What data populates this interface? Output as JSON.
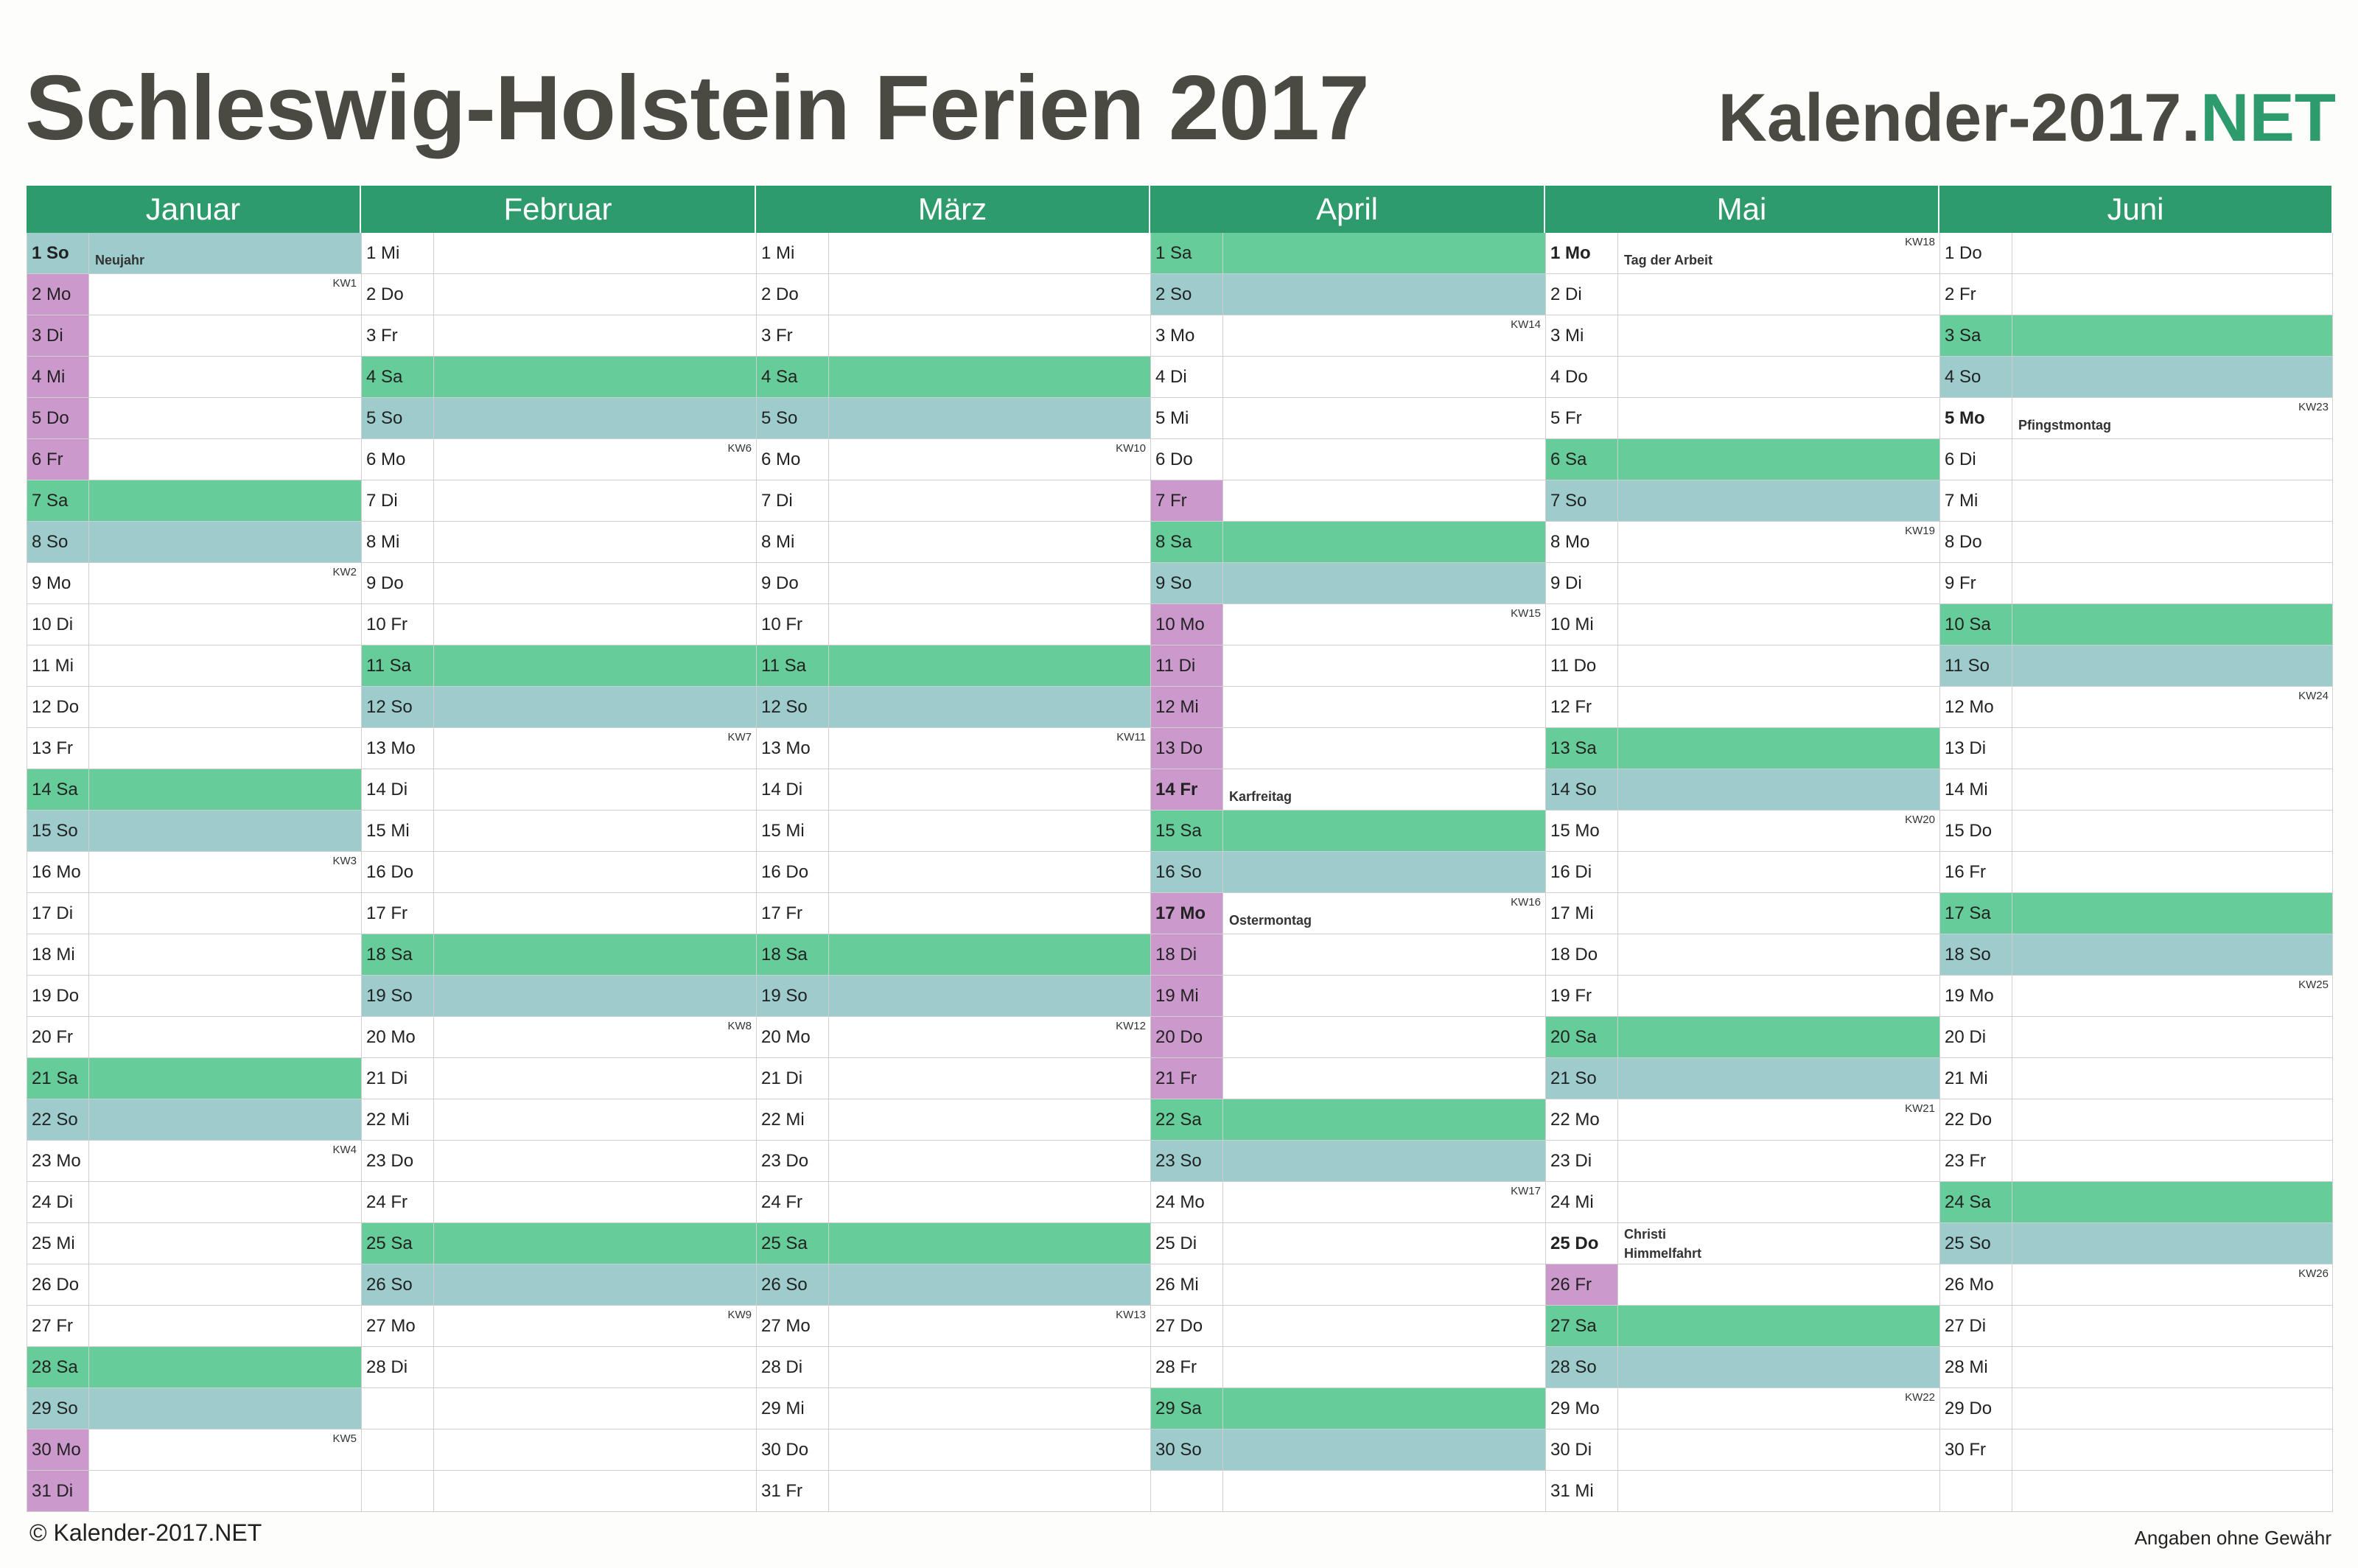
{
  "title": "Schleswig-Holstein Ferien 2017",
  "brand": {
    "main": "Kalender-2017.",
    "accent": "NET"
  },
  "colors": {
    "header": "#2e9b6c",
    "saturday": "#66cc99",
    "sunday": "#9ecccc",
    "ferien": "#cc99cc",
    "workday": "#ffffff"
  },
  "footer": {
    "copyright": "© Kalender-2017.NET",
    "disclaimer": "Angaben ohne Gewähr"
  },
  "months": [
    {
      "name": "Januar",
      "days": [
        {
          "label": "1 So",
          "type": "so",
          "holiday": "Neujahr",
          "bold": true
        },
        {
          "label": "2 Mo",
          "type": "wk",
          "kw": "KW1",
          "ferien": true
        },
        {
          "label": "3 Di",
          "type": "wk",
          "ferien": true
        },
        {
          "label": "4 Mi",
          "type": "wk",
          "ferien": true
        },
        {
          "label": "5 Do",
          "type": "wk",
          "ferien": true
        },
        {
          "label": "6 Fr",
          "type": "wk",
          "ferien": true
        },
        {
          "label": "7 Sa",
          "type": "sa"
        },
        {
          "label": "8 So",
          "type": "so"
        },
        {
          "label": "9 Mo",
          "type": "wk",
          "kw": "KW2"
        },
        {
          "label": "10 Di",
          "type": "wk"
        },
        {
          "label": "11 Mi",
          "type": "wk"
        },
        {
          "label": "12 Do",
          "type": "wk"
        },
        {
          "label": "13 Fr",
          "type": "wk"
        },
        {
          "label": "14 Sa",
          "type": "sa"
        },
        {
          "label": "15 So",
          "type": "so"
        },
        {
          "label": "16 Mo",
          "type": "wk",
          "kw": "KW3"
        },
        {
          "label": "17 Di",
          "type": "wk"
        },
        {
          "label": "18 Mi",
          "type": "wk"
        },
        {
          "label": "19 Do",
          "type": "wk"
        },
        {
          "label": "20 Fr",
          "type": "wk"
        },
        {
          "label": "21 Sa",
          "type": "sa"
        },
        {
          "label": "22 So",
          "type": "so"
        },
        {
          "label": "23 Mo",
          "type": "wk",
          "kw": "KW4"
        },
        {
          "label": "24 Di",
          "type": "wk"
        },
        {
          "label": "25 Mi",
          "type": "wk"
        },
        {
          "label": "26 Do",
          "type": "wk"
        },
        {
          "label": "27 Fr",
          "type": "wk"
        },
        {
          "label": "28 Sa",
          "type": "sa"
        },
        {
          "label": "29 So",
          "type": "so"
        },
        {
          "label": "30 Mo",
          "type": "wk",
          "kw": "KW5",
          "ferien": true
        },
        {
          "label": "31 Di",
          "type": "wk",
          "ferien": true
        }
      ]
    },
    {
      "name": "Februar",
      "days": [
        {
          "label": "1 Mi",
          "type": "wk"
        },
        {
          "label": "2 Do",
          "type": "wk"
        },
        {
          "label": "3 Fr",
          "type": "wk"
        },
        {
          "label": "4 Sa",
          "type": "sa"
        },
        {
          "label": "5 So",
          "type": "so"
        },
        {
          "label": "6 Mo",
          "type": "wk",
          "kw": "KW6"
        },
        {
          "label": "7 Di",
          "type": "wk"
        },
        {
          "label": "8 Mi",
          "type": "wk"
        },
        {
          "label": "9 Do",
          "type": "wk"
        },
        {
          "label": "10 Fr",
          "type": "wk"
        },
        {
          "label": "11 Sa",
          "type": "sa"
        },
        {
          "label": "12 So",
          "type": "so"
        },
        {
          "label": "13 Mo",
          "type": "wk",
          "kw": "KW7"
        },
        {
          "label": "14 Di",
          "type": "wk"
        },
        {
          "label": "15 Mi",
          "type": "wk"
        },
        {
          "label": "16 Do",
          "type": "wk"
        },
        {
          "label": "17 Fr",
          "type": "wk"
        },
        {
          "label": "18 Sa",
          "type": "sa"
        },
        {
          "label": "19 So",
          "type": "so"
        },
        {
          "label": "20 Mo",
          "type": "wk",
          "kw": "KW8"
        },
        {
          "label": "21 Di",
          "type": "wk"
        },
        {
          "label": "22 Mi",
          "type": "wk"
        },
        {
          "label": "23 Do",
          "type": "wk"
        },
        {
          "label": "24 Fr",
          "type": "wk"
        },
        {
          "label": "25 Sa",
          "type": "sa"
        },
        {
          "label": "26 So",
          "type": "so"
        },
        {
          "label": "27 Mo",
          "type": "wk",
          "kw": "KW9"
        },
        {
          "label": "28 Di",
          "type": "wk"
        }
      ]
    },
    {
      "name": "März",
      "days": [
        {
          "label": "1 Mi",
          "type": "wk"
        },
        {
          "label": "2 Do",
          "type": "wk"
        },
        {
          "label": "3 Fr",
          "type": "wk"
        },
        {
          "label": "4 Sa",
          "type": "sa"
        },
        {
          "label": "5 So",
          "type": "so"
        },
        {
          "label": "6 Mo",
          "type": "wk",
          "kw": "KW10"
        },
        {
          "label": "7 Di",
          "type": "wk"
        },
        {
          "label": "8 Mi",
          "type": "wk"
        },
        {
          "label": "9 Do",
          "type": "wk"
        },
        {
          "label": "10 Fr",
          "type": "wk"
        },
        {
          "label": "11 Sa",
          "type": "sa"
        },
        {
          "label": "12 So",
          "type": "so"
        },
        {
          "label": "13 Mo",
          "type": "wk",
          "kw": "KW11"
        },
        {
          "label": "14 Di",
          "type": "wk"
        },
        {
          "label": "15 Mi",
          "type": "wk"
        },
        {
          "label": "16 Do",
          "type": "wk"
        },
        {
          "label": "17 Fr",
          "type": "wk"
        },
        {
          "label": "18 Sa",
          "type": "sa"
        },
        {
          "label": "19 So",
          "type": "so"
        },
        {
          "label": "20 Mo",
          "type": "wk",
          "kw": "KW12"
        },
        {
          "label": "21 Di",
          "type": "wk"
        },
        {
          "label": "22 Mi",
          "type": "wk"
        },
        {
          "label": "23 Do",
          "type": "wk"
        },
        {
          "label": "24 Fr",
          "type": "wk"
        },
        {
          "label": "25 Sa",
          "type": "sa"
        },
        {
          "label": "26 So",
          "type": "so"
        },
        {
          "label": "27 Mo",
          "type": "wk",
          "kw": "KW13"
        },
        {
          "label": "28 Di",
          "type": "wk"
        },
        {
          "label": "29 Mi",
          "type": "wk"
        },
        {
          "label": "30 Do",
          "type": "wk"
        },
        {
          "label": "31 Fr",
          "type": "wk"
        }
      ]
    },
    {
      "name": "April",
      "days": [
        {
          "label": "1 Sa",
          "type": "sa"
        },
        {
          "label": "2 So",
          "type": "so"
        },
        {
          "label": "3 Mo",
          "type": "wk",
          "kw": "KW14"
        },
        {
          "label": "4 Di",
          "type": "wk"
        },
        {
          "label": "5 Mi",
          "type": "wk"
        },
        {
          "label": "6 Do",
          "type": "wk"
        },
        {
          "label": "7 Fr",
          "type": "wk",
          "ferien": true
        },
        {
          "label": "8 Sa",
          "type": "sa"
        },
        {
          "label": "9 So",
          "type": "so"
        },
        {
          "label": "10 Mo",
          "type": "wk",
          "kw": "KW15",
          "ferien": true
        },
        {
          "label": "11 Di",
          "type": "wk",
          "ferien": true
        },
        {
          "label": "12 Mi",
          "type": "wk",
          "ferien": true
        },
        {
          "label": "13 Do",
          "type": "wk",
          "ferien": true
        },
        {
          "label": "14 Fr",
          "type": "wk",
          "ferien": true,
          "holiday": "Karfreitag",
          "bold": true
        },
        {
          "label": "15 Sa",
          "type": "sa"
        },
        {
          "label": "16 So",
          "type": "so"
        },
        {
          "label": "17 Mo",
          "type": "wk",
          "kw": "KW16",
          "ferien": true,
          "holiday": "Ostermontag",
          "bold": true
        },
        {
          "label": "18 Di",
          "type": "wk",
          "ferien": true
        },
        {
          "label": "19 Mi",
          "type": "wk",
          "ferien": true
        },
        {
          "label": "20 Do",
          "type": "wk",
          "ferien": true
        },
        {
          "label": "21 Fr",
          "type": "wk",
          "ferien": true
        },
        {
          "label": "22 Sa",
          "type": "sa"
        },
        {
          "label": "23 So",
          "type": "so"
        },
        {
          "label": "24 Mo",
          "type": "wk",
          "kw": "KW17"
        },
        {
          "label": "25 Di",
          "type": "wk"
        },
        {
          "label": "26 Mi",
          "type": "wk"
        },
        {
          "label": "27 Do",
          "type": "wk"
        },
        {
          "label": "28 Fr",
          "type": "wk"
        },
        {
          "label": "29 Sa",
          "type": "sa"
        },
        {
          "label": "30 So",
          "type": "so"
        }
      ]
    },
    {
      "name": "Mai",
      "days": [
        {
          "label": "1 Mo",
          "type": "wk",
          "kw": "KW18",
          "holiday": "Tag der Arbeit",
          "bold": true
        },
        {
          "label": "2 Di",
          "type": "wk"
        },
        {
          "label": "3 Mi",
          "type": "wk"
        },
        {
          "label": "4 Do",
          "type": "wk"
        },
        {
          "label": "5 Fr",
          "type": "wk"
        },
        {
          "label": "6 Sa",
          "type": "sa"
        },
        {
          "label": "7 So",
          "type": "so"
        },
        {
          "label": "8 Mo",
          "type": "wk",
          "kw": "KW19"
        },
        {
          "label": "9 Di",
          "type": "wk"
        },
        {
          "label": "10 Mi",
          "type": "wk"
        },
        {
          "label": "11 Do",
          "type": "wk"
        },
        {
          "label": "12 Fr",
          "type": "wk"
        },
        {
          "label": "13 Sa",
          "type": "sa"
        },
        {
          "label": "14 So",
          "type": "so"
        },
        {
          "label": "15 Mo",
          "type": "wk",
          "kw": "KW20"
        },
        {
          "label": "16 Di",
          "type": "wk"
        },
        {
          "label": "17 Mi",
          "type": "wk"
        },
        {
          "label": "18 Do",
          "type": "wk"
        },
        {
          "label": "19 Fr",
          "type": "wk"
        },
        {
          "label": "20 Sa",
          "type": "sa"
        },
        {
          "label": "21 So",
          "type": "so"
        },
        {
          "label": "22 Mo",
          "type": "wk",
          "kw": "KW21"
        },
        {
          "label": "23 Di",
          "type": "wk"
        },
        {
          "label": "24 Mi",
          "type": "wk"
        },
        {
          "label": "25 Do",
          "type": "wk",
          "holiday": "Christi Himmelfahrt",
          "bold": true
        },
        {
          "label": "26 Fr",
          "type": "wk",
          "ferien": true
        },
        {
          "label": "27 Sa",
          "type": "sa"
        },
        {
          "label": "28 So",
          "type": "so"
        },
        {
          "label": "29 Mo",
          "type": "wk",
          "kw": "KW22"
        },
        {
          "label": "30 Di",
          "type": "wk"
        },
        {
          "label": "31 Mi",
          "type": "wk"
        }
      ]
    },
    {
      "name": "Juni",
      "days": [
        {
          "label": "1 Do",
          "type": "wk"
        },
        {
          "label": "2 Fr",
          "type": "wk"
        },
        {
          "label": "3 Sa",
          "type": "sa"
        },
        {
          "label": "4 So",
          "type": "so"
        },
        {
          "label": "5 Mo",
          "type": "wk",
          "kw": "KW23",
          "holiday": "Pfingstmontag",
          "bold": true
        },
        {
          "label": "6 Di",
          "type": "wk"
        },
        {
          "label": "7 Mi",
          "type": "wk"
        },
        {
          "label": "8 Do",
          "type": "wk"
        },
        {
          "label": "9 Fr",
          "type": "wk"
        },
        {
          "label": "10 Sa",
          "type": "sa"
        },
        {
          "label": "11 So",
          "type": "so"
        },
        {
          "label": "12 Mo",
          "type": "wk",
          "kw": "KW24"
        },
        {
          "label": "13 Di",
          "type": "wk"
        },
        {
          "label": "14 Mi",
          "type": "wk"
        },
        {
          "label": "15 Do",
          "type": "wk"
        },
        {
          "label": "16 Fr",
          "type": "wk"
        },
        {
          "label": "17 Sa",
          "type": "sa"
        },
        {
          "label": "18 So",
          "type": "so"
        },
        {
          "label": "19 Mo",
          "type": "wk",
          "kw": "KW25"
        },
        {
          "label": "20 Di",
          "type": "wk"
        },
        {
          "label": "21 Mi",
          "type": "wk"
        },
        {
          "label": "22 Do",
          "type": "wk"
        },
        {
          "label": "23 Fr",
          "type": "wk"
        },
        {
          "label": "24 Sa",
          "type": "sa"
        },
        {
          "label": "25 So",
          "type": "so"
        },
        {
          "label": "26 Mo",
          "type": "wk",
          "kw": "KW26"
        },
        {
          "label": "27 Di",
          "type": "wk"
        },
        {
          "label": "28 Mi",
          "type": "wk"
        },
        {
          "label": "29 Do",
          "type": "wk"
        },
        {
          "label": "30 Fr",
          "type": "wk"
        }
      ]
    }
  ]
}
